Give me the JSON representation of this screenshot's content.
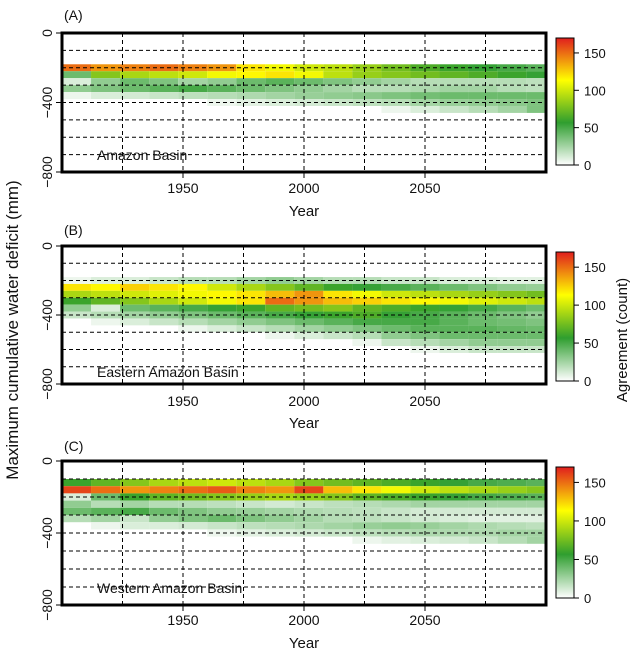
{
  "shared_ylabel": "Maximum cumulative water deficit (mm)",
  "legend_label": "Agreement (count)",
  "colorbar": {
    "ticks": [
      0,
      50,
      100,
      150
    ],
    "range": [
      0,
      170
    ],
    "colors": [
      "#ffffff",
      "#2f9e2f",
      "#ffff00",
      "#e01e1e"
    ]
  },
  "chart_data": [
    {
      "type": "heatmap",
      "panel_label": "(A)",
      "annotation": "Amazon Basin",
      "xlabel": "Year",
      "xlim": [
        1900,
        2100
      ],
      "xticks": [
        1950,
        2000,
        2050
      ],
      "ylim": [
        -800,
        0
      ],
      "yticks": [
        0,
        -400,
        -800
      ],
      "bin": {
        "year": 12,
        "mcwd": 40
      },
      "profile": [
        {
          "mcwd": -200,
          "values": [
            150,
            140,
            145,
            150,
            145,
            140,
            120,
            110,
            100,
            95,
            85,
            75,
            65,
            60,
            55,
            50,
            45
          ]
        },
        {
          "mcwd": -240,
          "values": [
            40,
            80,
            90,
            95,
            100,
            110,
            115,
            120,
            110,
            95,
            85,
            80,
            75,
            70,
            65,
            60,
            55
          ]
        },
        {
          "mcwd": -280,
          "values": [
            10,
            30,
            40,
            35,
            25,
            30,
            40,
            45,
            40,
            35,
            30,
            25,
            20,
            20,
            20,
            20,
            18
          ]
        },
        {
          "mcwd": -320,
          "values": [
            30,
            35,
            40,
            45,
            50,
            45,
            40,
            35,
            30,
            25,
            20,
            20,
            22,
            25,
            25,
            20,
            18
          ]
        },
        {
          "mcwd": -360,
          "values": [
            5,
            10,
            12,
            15,
            18,
            20,
            22,
            25,
            28,
            30,
            32,
            35,
            38,
            40,
            40,
            40,
            40
          ]
        },
        {
          "mcwd": -400,
          "values": [
            0,
            0,
            0,
            0,
            0,
            5,
            8,
            10,
            12,
            15,
            18,
            20,
            25,
            28,
            30,
            32,
            35
          ]
        },
        {
          "mcwd": -440,
          "values": [
            0,
            0,
            0,
            0,
            0,
            0,
            0,
            0,
            0,
            0,
            0,
            5,
            10,
            15,
            20,
            25,
            35
          ]
        }
      ]
    },
    {
      "type": "heatmap",
      "panel_label": "(B)",
      "annotation": "Eastern Amazon Basin",
      "xlabel": "Year",
      "xlim": [
        1900,
        2100
      ],
      "xticks": [
        1950,
        2000,
        2050
      ],
      "ylim": [
        -800,
        0
      ],
      "yticks": [
        0,
        -400,
        -800
      ],
      "bin": {
        "year": 12,
        "mcwd": 40
      },
      "profile": [
        {
          "mcwd": -200,
          "values": [
            5,
            10,
            10,
            15,
            20,
            20,
            25,
            30,
            25,
            20,
            20,
            15,
            15,
            10,
            10,
            8,
            8
          ]
        },
        {
          "mcwd": -240,
          "values": [
            120,
            115,
            125,
            120,
            115,
            100,
            90,
            80,
            70,
            60,
            55,
            50,
            45,
            40,
            35,
            30,
            28
          ]
        },
        {
          "mcwd": -280,
          "values": [
            90,
            95,
            100,
            105,
            110,
            115,
            120,
            130,
            140,
            120,
            110,
            100,
            95,
            90,
            85,
            80,
            75
          ]
        },
        {
          "mcwd": -320,
          "values": [
            60,
            70,
            80,
            90,
            100,
            110,
            120,
            150,
            140,
            130,
            125,
            120,
            115,
            110,
            105,
            100,
            95
          ]
        },
        {
          "mcwd": -360,
          "values": [
            30,
            10,
            40,
            45,
            50,
            55,
            60,
            70,
            75,
            80,
            70,
            65,
            60,
            55,
            50,
            45,
            40
          ]
        },
        {
          "mcwd": -400,
          "values": [
            15,
            20,
            25,
            30,
            35,
            40,
            45,
            50,
            55,
            60,
            65,
            55,
            50,
            45,
            40,
            35,
            30
          ]
        },
        {
          "mcwd": -440,
          "values": [
            0,
            5,
            10,
            15,
            20,
            25,
            30,
            35,
            40,
            45,
            50,
            50,
            50,
            45,
            40,
            38,
            35
          ]
        },
        {
          "mcwd": -480,
          "values": [
            0,
            0,
            0,
            0,
            5,
            10,
            15,
            20,
            25,
            30,
            35,
            40,
            45,
            45,
            45,
            42,
            40
          ]
        },
        {
          "mcwd": -520,
          "values": [
            0,
            0,
            0,
            0,
            0,
            0,
            0,
            5,
            10,
            15,
            20,
            30,
            35,
            40,
            40,
            40,
            40
          ]
        },
        {
          "mcwd": -560,
          "values": [
            0,
            0,
            0,
            0,
            0,
            0,
            0,
            0,
            0,
            0,
            5,
            15,
            20,
            25,
            30,
            30,
            30
          ]
        },
        {
          "mcwd": -600,
          "values": [
            0,
            0,
            0,
            0,
            0,
            0,
            0,
            0,
            0,
            0,
            0,
            0,
            5,
            10,
            15,
            15,
            15
          ]
        }
      ]
    },
    {
      "type": "heatmap",
      "panel_label": "(C)",
      "annotation": "Western Amazon Basin",
      "xlabel": "Year",
      "xlim": [
        1900,
        2100
      ],
      "xticks": [
        1950,
        2000,
        2050
      ],
      "ylim": [
        -800,
        0
      ],
      "yticks": [
        0,
        -400,
        -800
      ],
      "bin": {
        "year": 12,
        "mcwd": 40
      },
      "profile": [
        {
          "mcwd": -120,
          "values": [
            60,
            70,
            80,
            90,
            95,
            100,
            95,
            90,
            80,
            75,
            70,
            65,
            60,
            55,
            50,
            48,
            45
          ]
        },
        {
          "mcwd": -160,
          "values": [
            160,
            150,
            140,
            145,
            150,
            155,
            145,
            140,
            160,
            130,
            120,
            110,
            100,
            95,
            90,
            85,
            80
          ]
        },
        {
          "mcwd": -200,
          "values": [
            10,
            40,
            60,
            70,
            75,
            80,
            85,
            90,
            85,
            80,
            70,
            65,
            60,
            55,
            50,
            48,
            45
          ]
        },
        {
          "mcwd": -240,
          "values": [
            30,
            20,
            25,
            20,
            20,
            18,
            15,
            12,
            15,
            18,
            20,
            22,
            25,
            25,
            25,
            25,
            25
          ]
        },
        {
          "mcwd": -280,
          "values": [
            40,
            45,
            50,
            40,
            35,
            30,
            28,
            25,
            22,
            20,
            18,
            15,
            12,
            12,
            12,
            12,
            12
          ]
        },
        {
          "mcwd": -320,
          "values": [
            20,
            25,
            15,
            30,
            35,
            40,
            35,
            30,
            25,
            20,
            18,
            15,
            12,
            10,
            8,
            8,
            8
          ]
        },
        {
          "mcwd": -360,
          "values": [
            0,
            5,
            10,
            10,
            12,
            15,
            18,
            20,
            22,
            25,
            28,
            30,
            28,
            25,
            22,
            20,
            18
          ]
        },
        {
          "mcwd": -400,
          "values": [
            0,
            0,
            0,
            0,
            0,
            5,
            8,
            10,
            12,
            15,
            18,
            20,
            22,
            22,
            22,
            25,
            25
          ]
        },
        {
          "mcwd": -440,
          "values": [
            0,
            0,
            0,
            0,
            0,
            0,
            0,
            0,
            0,
            0,
            5,
            8,
            10,
            12,
            15,
            20,
            25
          ]
        }
      ]
    }
  ]
}
